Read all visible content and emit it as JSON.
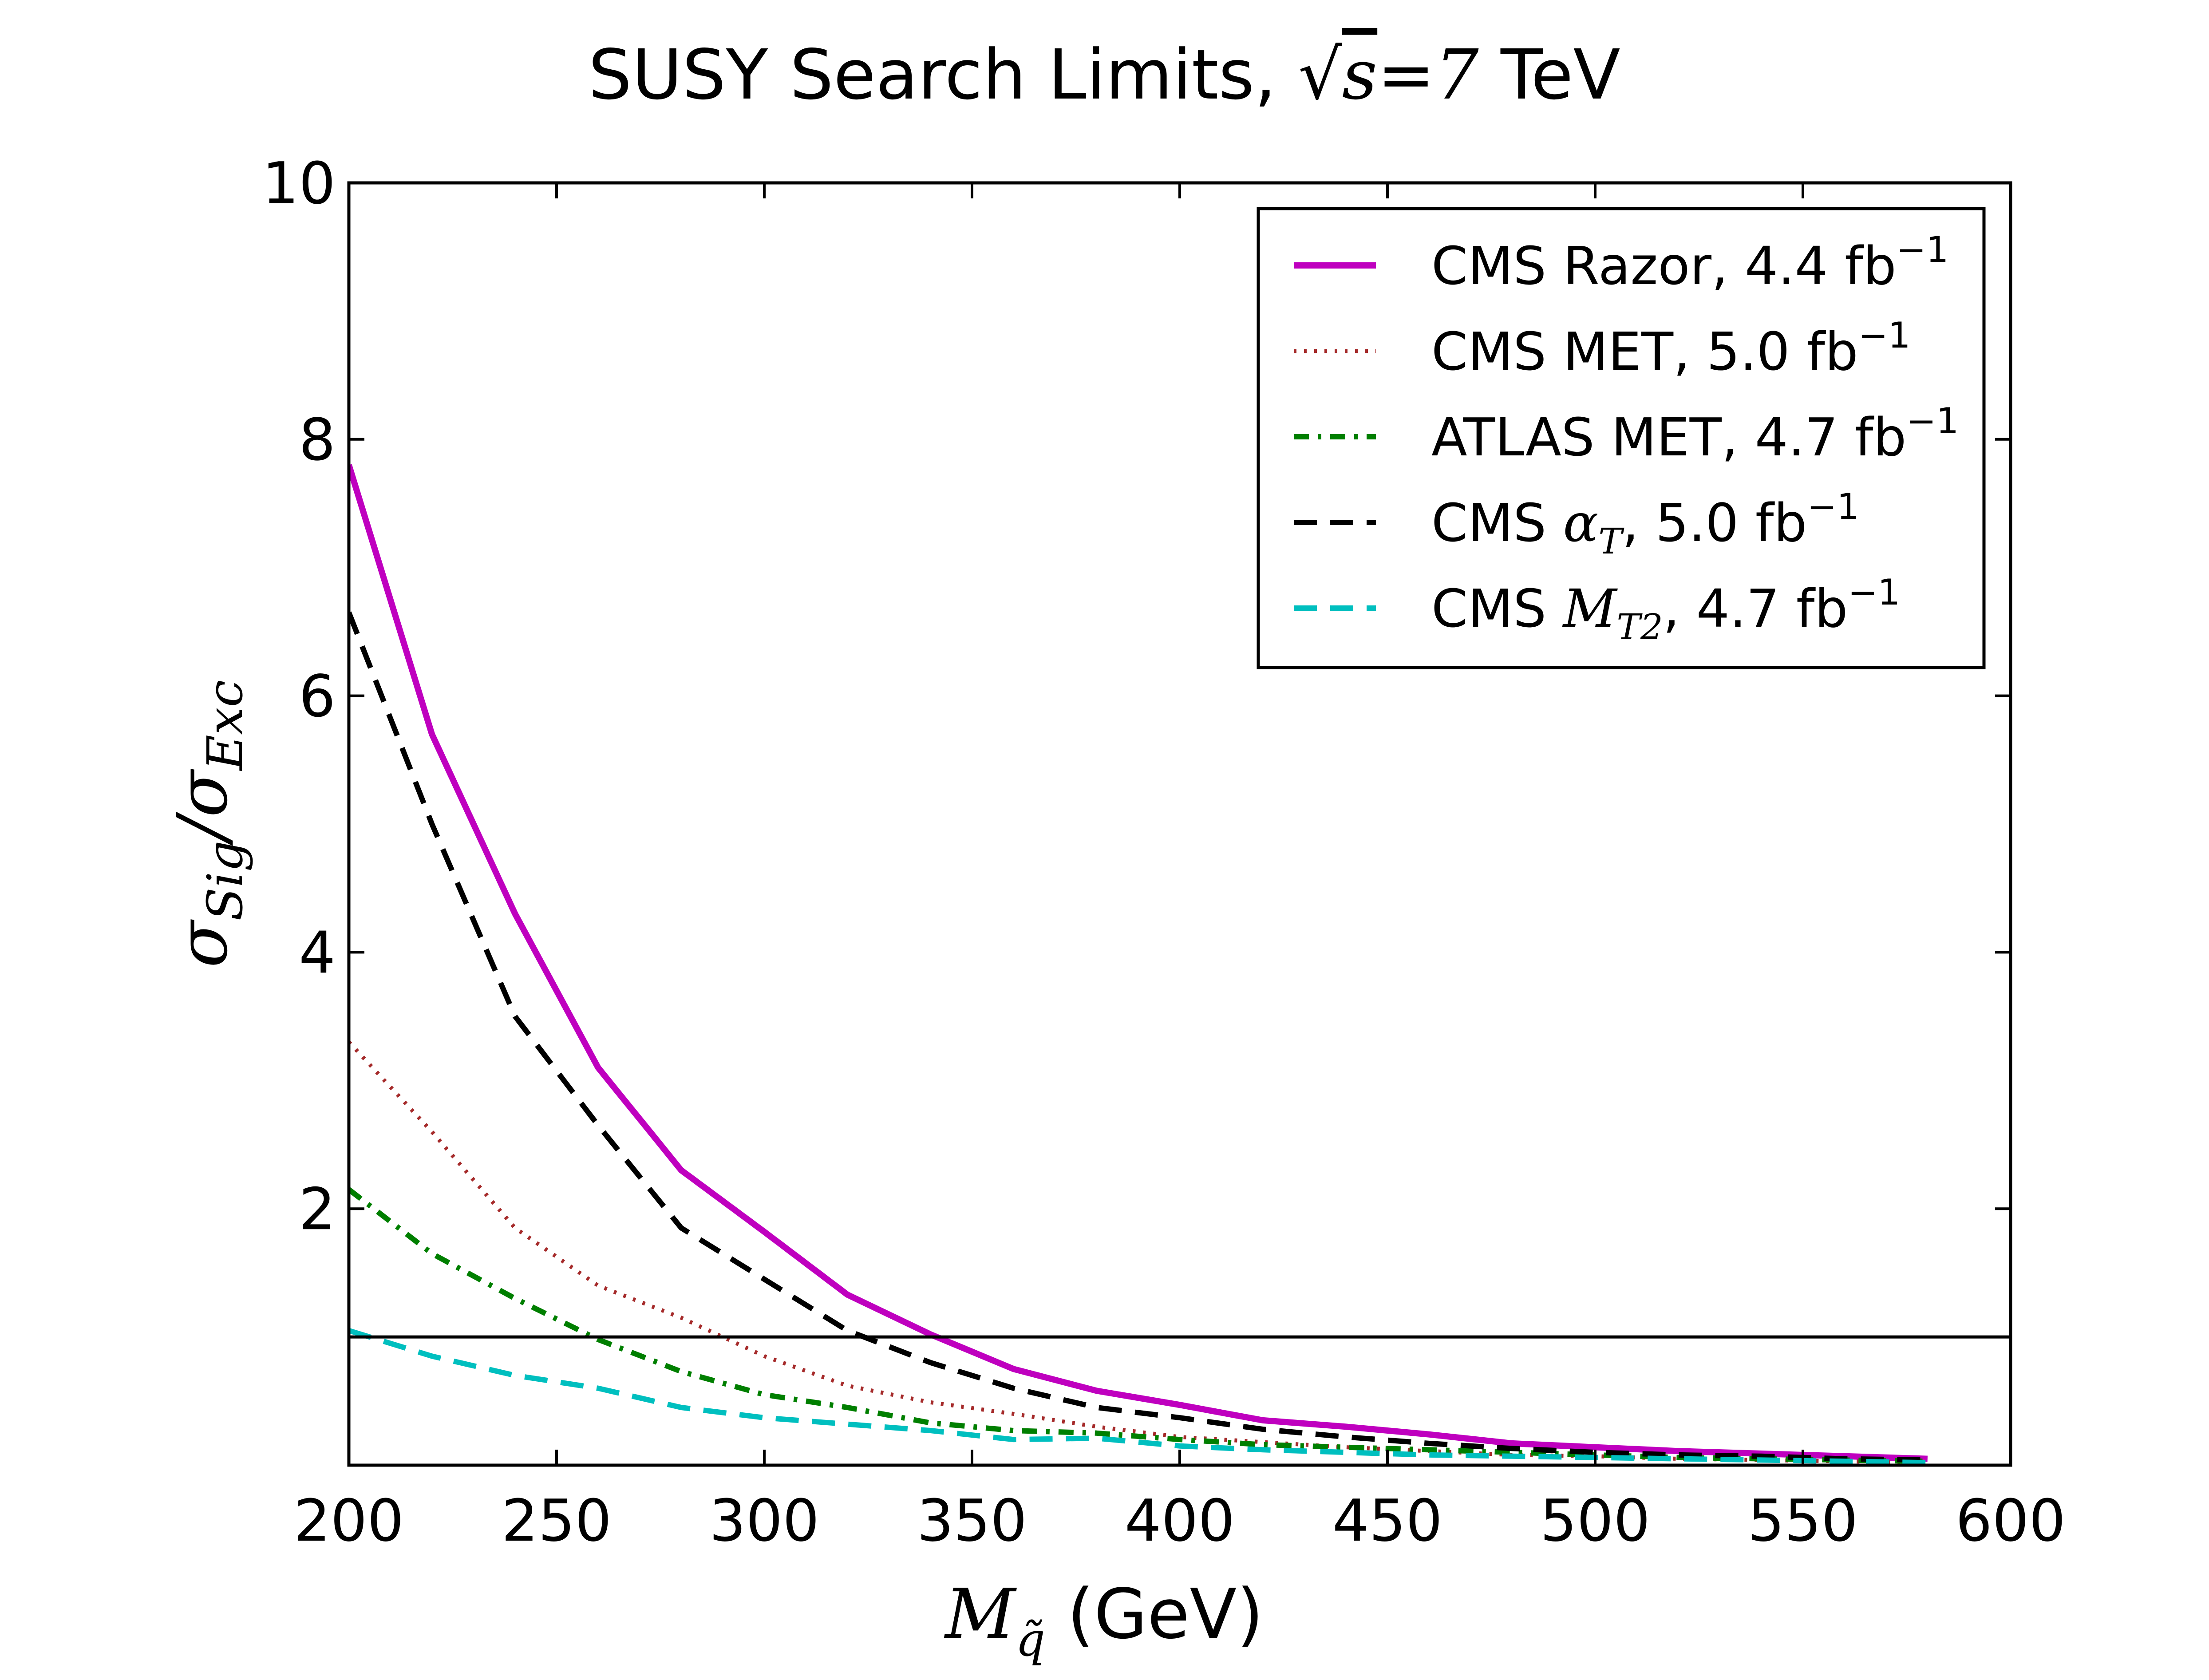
{
  "chart_data": {
    "type": "line",
    "title": "SUSY Search Limits, √s =7 TeV",
    "title_parts": {
      "prefix": "SUSY Search Limits, ",
      "sqrt": "√",
      "s": "s",
      "eq": "=7",
      "suffix": " TeV"
    },
    "xlabel": "M_q̃ (GeV)",
    "xlabel_parts": {
      "M": "M",
      "sub": "q̃",
      "unit": " (GeV)"
    },
    "ylabel": "σ_Sig/σ_Exc",
    "ylabel_parts": {
      "s1": "σ",
      "sub1": "Sig",
      "slash": "/",
      "s2": "σ",
      "sub2": "Exc"
    },
    "xlim": [
      200,
      600
    ],
    "ylim": [
      0,
      10
    ],
    "xticks": [
      200,
      250,
      300,
      350,
      400,
      450,
      500,
      550,
      600
    ],
    "xtick_labels": [
      "200",
      "250",
      "300",
      "350",
      "400",
      "450",
      "500",
      "550",
      "600"
    ],
    "yticks": [
      2,
      4,
      6,
      8,
      10
    ],
    "ytick_labels": [
      "2",
      "4",
      "6",
      "8",
      "10"
    ],
    "grid": false,
    "legend_position": "top-right",
    "reference_line": {
      "y": 1.0,
      "color": "#000000"
    },
    "x": [
      200,
      220,
      240,
      260,
      280,
      300,
      320,
      340,
      360,
      380,
      400,
      420,
      440,
      460,
      480,
      500,
      520,
      540,
      560,
      580
    ],
    "series": [
      {
        "name": "CMS Razor, 4.4 fb",
        "name_parts": {
          "label": "CMS Razor, ",
          "mid": "",
          "value": "4.4 fb",
          "sup": "−1"
        },
        "color": "#bf00bf",
        "style": "solid",
        "values": [
          7.8,
          5.7,
          4.3,
          3.1,
          2.3,
          1.82,
          1.33,
          1.02,
          0.75,
          0.58,
          0.47,
          0.35,
          0.3,
          0.24,
          0.17,
          0.14,
          0.11,
          0.09,
          0.07,
          0.05
        ]
      },
      {
        "name": "CMS MET, 5.0 fb",
        "name_parts": {
          "label": "CMS MET, ",
          "mid": "",
          "value": "5.0 fb",
          "sup": "−1"
        },
        "color": "#a52a2a",
        "style": "dotted",
        "values": [
          3.3,
          2.6,
          1.85,
          1.4,
          1.15,
          0.85,
          0.62,
          0.49,
          0.4,
          0.3,
          0.22,
          0.18,
          0.14,
          0.11,
          0.08,
          0.07,
          0.05,
          0.04,
          0.03,
          0.02
        ]
      },
      {
        "name": "ATLAS MET, 4.7 fb",
        "name_parts": {
          "label": "ATLAS MET, ",
          "mid": "",
          "value": "4.7 fb",
          "sup": "−1"
        },
        "color": "#007f00",
        "style": "dashdot",
        "values": [
          2.15,
          1.65,
          1.3,
          0.98,
          0.73,
          0.55,
          0.45,
          0.33,
          0.27,
          0.25,
          0.2,
          0.16,
          0.14,
          0.12,
          0.1,
          0.08,
          0.06,
          0.05,
          0.04,
          0.03
        ]
      },
      {
        "name": "CMS αT, 5.0 fb",
        "name_parts": {
          "label": "CMS ",
          "mid": "α",
          "mid_sub": "T",
          "value": ", 5.0 fb",
          "sup": "−1"
        },
        "color": "#000000",
        "style": "dashed",
        "values": [
          6.65,
          5.0,
          3.5,
          2.65,
          1.85,
          1.45,
          1.05,
          0.8,
          0.6,
          0.45,
          0.37,
          0.28,
          0.22,
          0.17,
          0.13,
          0.1,
          0.08,
          0.07,
          0.05,
          0.04
        ]
      },
      {
        "name": "CMS MT2, 4.7 fb",
        "name_parts": {
          "label": "CMS ",
          "mid": "M",
          "mid_sub": "T2",
          "value": ", 4.7 fb",
          "sup": "−1"
        },
        "color": "#00bfbf",
        "style": "dashed",
        "values": [
          1.05,
          0.85,
          0.7,
          0.6,
          0.45,
          0.37,
          0.32,
          0.27,
          0.2,
          0.21,
          0.15,
          0.12,
          0.1,
          0.08,
          0.07,
          0.06,
          0.05,
          0.04,
          0.03,
          0.02
        ]
      }
    ]
  }
}
